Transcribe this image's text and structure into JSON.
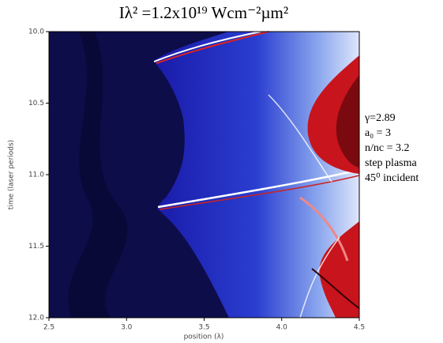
{
  "chart_data": {
    "type": "heatmap",
    "title": "Iλ² =1.2x10¹⁹ Wcm⁻²µm²",
    "x_label": "position (λ)",
    "y_label": "time (laser periods)",
    "xlim": [
      2.5,
      4.5
    ],
    "xticks": [
      2.5,
      {
        "value": 3,
        "label": "3.0"
      },
      3.5,
      {
        "value": 4,
        "label": "4.0"
      },
      4.5
    ],
    "ylim": [
      10,
      12
    ],
    "yticks": [
      {
        "value": 10,
        "label": "10.0"
      },
      10.5,
      {
        "value": 11,
        "label": "11.0"
      },
      11.5,
      {
        "value": 12,
        "label": "12.0"
      }
    ],
    "y_inverted": true,
    "annotations": [
      "γ=2.89",
      "a₀ = 3",
      "n/nc = 3.2",
      "step plasma",
      "45⁰ incident"
    ]
  }
}
